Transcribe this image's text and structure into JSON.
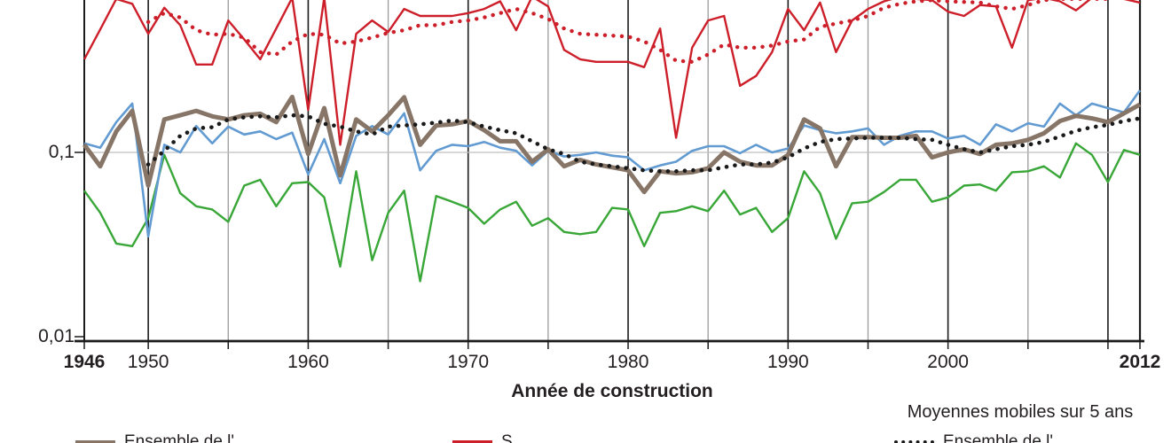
{
  "figure": {
    "x_axis": {
      "title": "Année de construction",
      "ticks": [
        {
          "label": "1946",
          "year": 1946,
          "bold": true
        },
        {
          "label": "1950",
          "year": 1950,
          "bold": false
        },
        {
          "label": "1960",
          "year": 1960,
          "bold": false
        },
        {
          "label": "1970",
          "year": 1970,
          "bold": false
        },
        {
          "label": "1980",
          "year": 1980,
          "bold": false
        },
        {
          "label": "1990",
          "year": 1990,
          "bold": false
        },
        {
          "label": "2000",
          "year": 2000,
          "bold": false
        },
        {
          "label": "2012",
          "year": 2012,
          "bold": true
        }
      ],
      "minor_tick_years": [
        1946,
        1950,
        1955,
        1960,
        1965,
        1970,
        1975,
        1980,
        1985,
        1990,
        1995,
        2000,
        2005,
        2010,
        2012
      ]
    },
    "y_axis": {
      "scale": "log",
      "ticks": [
        {
          "label": "0,1",
          "value": 0.1
        },
        {
          "label": "0,01",
          "value": 0.01
        }
      ]
    },
    "note": "Moyennes mobiles sur 5 ans",
    "legend": {
      "visibility": "cut off at bottom edge of image, only letter tops visible",
      "items": [
        {
          "label": "Ensemble de l'…",
          "swatch": "brown-solid"
        },
        {
          "label": "S…",
          "swatch": "red-solid"
        },
        {
          "label": "Ensemble de l'…",
          "swatch": "black-dotted"
        }
      ]
    },
    "colors": {
      "red": "#cd1f2a",
      "brown": "#877567",
      "blue": "#629bd2",
      "green": "#38a737",
      "black": "#1a1a1a",
      "grid_dark": "#1b1b1b",
      "grid_gray": "#9b9b9b",
      "grid_light": "#bfbfbf"
    }
  },
  "chart_data": {
    "type": "line",
    "y_scale": "log",
    "xlim": [
      1946,
      2012
    ],
    "ylim": [
      0.01,
      0.672
    ],
    "x_start": 1946,
    "x_step": 1,
    "grid": {
      "vertical_dark_years": [
        1950,
        1960,
        1970,
        1980,
        1990,
        2000,
        2010
      ],
      "vertical_gray_years": [
        1955,
        1965,
        1975,
        1985,
        1995,
        2005
      ],
      "horizontal_gridline_value": 0.1
    },
    "series": [
      {
        "name": "Vert (annuel)",
        "color": "green",
        "style": "solid",
        "width": 2.4,
        "values": [
          0.062,
          0.047,
          0.032,
          0.031,
          0.044,
          0.097,
          0.06,
          0.051,
          0.049,
          0.042,
          0.066,
          0.071,
          0.051,
          0.068,
          0.069,
          0.057,
          0.024,
          0.079,
          0.026,
          0.047,
          0.062,
          0.02,
          0.058,
          0.054,
          0.05,
          0.041,
          0.049,
          0.054,
          0.04,
          0.044,
          0.037,
          0.036,
          0.037,
          0.05,
          0.049,
          0.031,
          0.047,
          0.048,
          0.051,
          0.048,
          0.062,
          0.046,
          0.05,
          0.037,
          0.044,
          0.079,
          0.06,
          0.034,
          0.053,
          0.054,
          0.061,
          0.071,
          0.071,
          0.054,
          0.057,
          0.066,
          0.067,
          0.062,
          0.078,
          0.079,
          0.084,
          0.073,
          0.112,
          0.097,
          0.069,
          0.103,
          0.097
        ]
      },
      {
        "name": "Bleu (annuel)",
        "color": "blue",
        "style": "solid",
        "width": 2.6,
        "values": [
          0.112,
          0.106,
          0.146,
          0.184,
          0.035,
          0.11,
          0.1,
          0.139,
          0.112,
          0.138,
          0.125,
          0.13,
          0.118,
          0.128,
          0.076,
          0.118,
          0.068,
          0.123,
          0.139,
          0.125,
          0.163,
          0.08,
          0.102,
          0.11,
          0.108,
          0.114,
          0.106,
          0.102,
          0.085,
          0.102,
          0.095,
          0.097,
          0.1,
          0.096,
          0.094,
          0.08,
          0.085,
          0.089,
          0.102,
          0.108,
          0.108,
          0.099,
          0.11,
          0.1,
          0.105,
          0.14,
          0.132,
          0.127,
          0.13,
          0.135,
          0.11,
          0.123,
          0.13,
          0.13,
          0.119,
          0.123,
          0.11,
          0.142,
          0.13,
          0.144,
          0.138,
          0.184,
          0.159,
          0.184,
          0.174,
          0.165,
          0.217
        ]
      },
      {
        "name": "Marron épais (annuel)",
        "color": "brown",
        "style": "solid",
        "width": 5,
        "values": [
          0.11,
          0.084,
          0.13,
          0.168,
          0.066,
          0.151,
          0.159,
          0.168,
          0.157,
          0.151,
          0.159,
          0.162,
          0.146,
          0.2,
          0.098,
          0.174,
          0.075,
          0.151,
          0.13,
          0.159,
          0.199,
          0.11,
          0.14,
          0.142,
          0.148,
          0.132,
          0.115,
          0.115,
          0.089,
          0.104,
          0.084,
          0.091,
          0.086,
          0.083,
          0.08,
          0.061,
          0.079,
          0.077,
          0.078,
          0.082,
          0.1,
          0.089,
          0.085,
          0.085,
          0.097,
          0.151,
          0.135,
          0.084,
          0.121,
          0.121,
          0.12,
          0.12,
          0.123,
          0.094,
          0.1,
          0.104,
          0.098,
          0.11,
          0.112,
          0.117,
          0.127,
          0.148,
          0.158,
          0.153,
          0.146,
          0.163,
          0.182
        ]
      },
      {
        "name": "Rouge (annuel)",
        "color": "red",
        "style": "solid",
        "width": 2.4,
        "values": [
          0.32,
          0.465,
          0.68,
          0.64,
          0.44,
          0.61,
          0.49,
          0.3,
          0.3,
          0.52,
          0.41,
          0.32,
          0.47,
          0.69,
          0.17,
          0.69,
          0.11,
          0.44,
          0.52,
          0.45,
          0.6,
          0.55,
          0.55,
          0.55,
          0.57,
          0.6,
          0.66,
          0.46,
          0.7,
          0.62,
          0.36,
          0.32,
          0.31,
          0.31,
          0.31,
          0.29,
          0.47,
          0.12,
          0.37,
          0.52,
          0.55,
          0.23,
          0.26,
          0.35,
          0.6,
          0.46,
          0.65,
          0.35,
          0.52,
          0.6,
          0.66,
          0.7,
          0.68,
          0.67,
          0.58,
          0.55,
          0.63,
          0.62,
          0.37,
          0.67,
          0.69,
          0.66,
          0.59,
          0.69,
          0.7,
          0.68,
          0.65
        ]
      },
      {
        "name": "Rouge — moyenne mobile 5 ans (pointillé)",
        "color": "red",
        "style": "dotted",
        "width": 4.4,
        "values": [
          null,
          null,
          null,
          null,
          0.51,
          0.57,
          0.54,
          0.46,
          0.435,
          0.44,
          0.42,
          0.35,
          0.34,
          0.4,
          0.44,
          0.435,
          0.39,
          0.4,
          0.42,
          0.445,
          0.46,
          0.49,
          0.49,
          0.51,
          0.52,
          0.54,
          0.57,
          0.6,
          0.57,
          0.53,
          0.47,
          0.44,
          0.435,
          0.43,
          0.425,
          0.4,
          0.36,
          0.315,
          0.31,
          0.34,
          0.385,
          0.37,
          0.37,
          0.38,
          0.4,
          0.41,
          0.48,
          0.5,
          0.52,
          0.55,
          0.61,
          0.64,
          0.66,
          0.67,
          0.66,
          0.655,
          0.65,
          0.62,
          0.6,
          0.63,
          0.67,
          0.68,
          0.68,
          0.68,
          0.68,
          null,
          null
        ]
      },
      {
        "name": "Noir — moyenne mobile 5 ans (pointillé)",
        "color": "black",
        "style": "dotted",
        "width": 4.6,
        "values": [
          null,
          null,
          null,
          null,
          0.086,
          0.102,
          0.123,
          0.135,
          0.137,
          0.151,
          0.155,
          0.157,
          0.155,
          0.159,
          0.157,
          0.143,
          0.138,
          0.13,
          0.125,
          0.138,
          0.14,
          0.142,
          0.145,
          0.149,
          0.146,
          0.138,
          0.132,
          0.127,
          0.115,
          0.104,
          0.098,
          0.089,
          0.086,
          0.084,
          0.082,
          0.08,
          0.079,
          0.079,
          0.08,
          0.08,
          0.083,
          0.086,
          0.086,
          0.088,
          0.094,
          0.105,
          0.114,
          0.118,
          0.119,
          0.12,
          0.12,
          0.12,
          0.118,
          0.117,
          0.11,
          0.104,
          0.1,
          0.104,
          0.108,
          0.11,
          0.114,
          0.122,
          0.131,
          0.137,
          0.141,
          0.148,
          0.153
        ]
      }
    ]
  }
}
